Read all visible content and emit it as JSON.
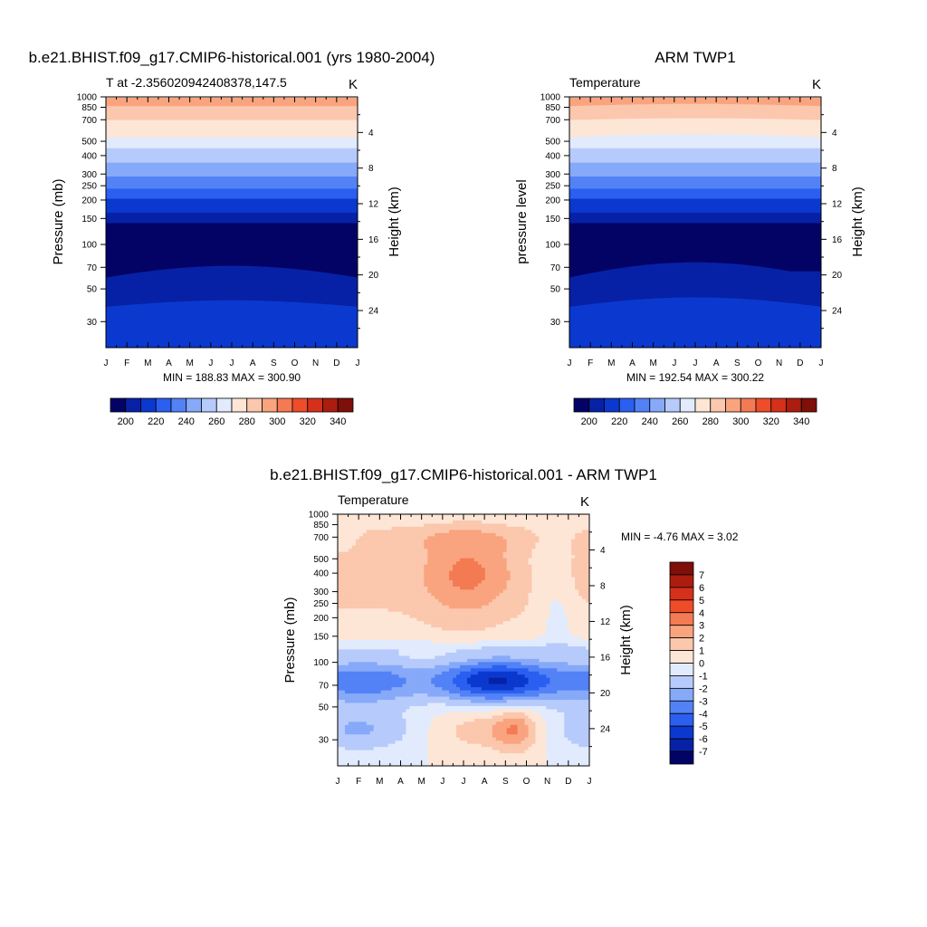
{
  "colors": {
    "cmap_abs": [
      "#030366",
      "#0721a6",
      "#0b39cf",
      "#2a5ff0",
      "#5382f6",
      "#87a9f9",
      "#b6cbfb",
      "#e1ebfd",
      "#fde6d6",
      "#fbc7ad",
      "#f9a47f",
      "#f47a53",
      "#ee4d2a",
      "#d5301a",
      "#ac1d0f",
      "#7e0f09"
    ],
    "cmap_diff": [
      "#030366",
      "#0721a6",
      "#0b39cf",
      "#2a5ff0",
      "#5382f6",
      "#87a9f9",
      "#b6cbfb",
      "#e1ebfd",
      "#fde6d6",
      "#fbc7ad",
      "#f9a47f",
      "#f47a53",
      "#ee4d2a",
      "#d5301a",
      "#ac1d0f",
      "#7e0f09"
    ]
  },
  "chart_data": [
    {
      "type": "heatmap",
      "title": "b.e21.BHIST.f09_g17.CMIP6-historical.001 (yrs 1980-2004)",
      "left_string": "T at -2.356020942408378,147.5",
      "right_string": "K",
      "ylabel": "Pressure (mb)",
      "ylabel_right": "Height (km)",
      "stats": "MIN = 188.83 MAX = 300.90",
      "x_ticks": [
        "J",
        "F",
        "M",
        "A",
        "M",
        "J",
        "J",
        "A",
        "S",
        "O",
        "N",
        "D",
        "J"
      ],
      "y_ticks": [
        "30",
        "50",
        "70",
        "100",
        "150",
        "200",
        "250",
        "300",
        "400",
        "500",
        "700",
        "850",
        "1000"
      ],
      "y_values": [
        30,
        50,
        70,
        100,
        150,
        200,
        250,
        300,
        400,
        500,
        700,
        850,
        1000
      ],
      "height_ticks": [
        "4",
        "8",
        "12",
        "16",
        "20",
        "24"
      ],
      "height_values": [
        4,
        8,
        12,
        16,
        20,
        24
      ],
      "colorbar_labels": [
        "200",
        "220",
        "240",
        "260",
        "280",
        "300",
        "320",
        "340"
      ],
      "levels": [
        200,
        210,
        220,
        230,
        240,
        250,
        260,
        270,
        280,
        290,
        300,
        310,
        320,
        330,
        340
      ],
      "ylim": [
        1000,
        20
      ],
      "months": [
        0,
        1,
        2,
        3,
        4,
        5,
        6,
        7,
        8,
        9,
        10,
        11,
        12
      ],
      "levels_p": [
        20,
        30,
        40,
        50,
        60,
        70,
        80,
        90,
        100,
        120,
        140,
        160,
        180,
        200,
        250,
        300,
        350,
        400,
        450,
        500,
        600,
        700,
        800,
        900,
        1000
      ],
      "values": [
        [
          205,
          205,
          205,
          205,
          205,
          205,
          205,
          205,
          205,
          205,
          205,
          205,
          205,
          205,
          205,
          205,
          205,
          205,
          205,
          205,
          205,
          205,
          205,
          205,
          205
        ],
        [
          208,
          208,
          208,
          208,
          208,
          208,
          208,
          208,
          208,
          208,
          208,
          208,
          208,
          208,
          208,
          208,
          208,
          208,
          208,
          208,
          208,
          208,
          208,
          208,
          208
        ]
      ]
    },
    {
      "type": "heatmap",
      "title": "ARM TWP1",
      "left_string": "Temperature",
      "right_string": "K",
      "ylabel": "pressure level",
      "ylabel_right": "Height (km)",
      "stats": "MIN = 192.54 MAX = 300.22",
      "x_ticks": [
        "J",
        "F",
        "M",
        "A",
        "M",
        "J",
        "J",
        "A",
        "S",
        "O",
        "N",
        "D",
        "J"
      ],
      "y_ticks": [
        "30",
        "50",
        "70",
        "100",
        "150",
        "200",
        "250",
        "300",
        "400",
        "500",
        "700",
        "850",
        "1000"
      ],
      "y_values": [
        30,
        50,
        70,
        100,
        150,
        200,
        250,
        300,
        400,
        500,
        700,
        850,
        1000
      ],
      "height_ticks": [
        "4",
        "8",
        "12",
        "16",
        "20",
        "24"
      ],
      "height_values": [
        4,
        8,
        12,
        16,
        20,
        24
      ],
      "colorbar_labels": [
        "200",
        "220",
        "240",
        "260",
        "280",
        "300",
        "320",
        "340"
      ],
      "levels": [
        200,
        210,
        220,
        230,
        240,
        250,
        260,
        270,
        280,
        290,
        300,
        310,
        320,
        330,
        340
      ],
      "ylim": [
        1000,
        20
      ]
    },
    {
      "type": "heatmap",
      "title": "b.e21.BHIST.f09_g17.CMIP6-historical.001 - ARM TWP1",
      "left_string": "Temperature",
      "right_string": "K",
      "ylabel": "Pressure (mb)",
      "ylabel_right": "Height (km)",
      "stats": "MIN =  -4.76 MAX =   3.02",
      "x_ticks": [
        "J",
        "F",
        "M",
        "A",
        "M",
        "J",
        "J",
        "A",
        "S",
        "O",
        "N",
        "D",
        "J"
      ],
      "y_ticks": [
        "30",
        "50",
        "70",
        "100",
        "150",
        "200",
        "250",
        "300",
        "400",
        "500",
        "700",
        "850",
        "1000"
      ],
      "y_values": [
        30,
        50,
        70,
        100,
        150,
        200,
        250,
        300,
        400,
        500,
        700,
        850,
        1000
      ],
      "height_ticks": [
        "4",
        "8",
        "12",
        "16",
        "20",
        "24"
      ],
      "height_values": [
        4,
        8,
        12,
        16,
        20,
        24
      ],
      "colorbar_labels": [
        "7",
        "6",
        "5",
        "4",
        "3",
        "2",
        "1",
        "0",
        "-1",
        "-2",
        "-3",
        "-4",
        "-5",
        "-6",
        "-7"
      ],
      "levels": [
        -7,
        -6,
        -5,
        -4,
        -3,
        -2,
        -1,
        0,
        1,
        2,
        3,
        4,
        5,
        6,
        7
      ],
      "ylim": [
        1000,
        20
      ]
    }
  ]
}
